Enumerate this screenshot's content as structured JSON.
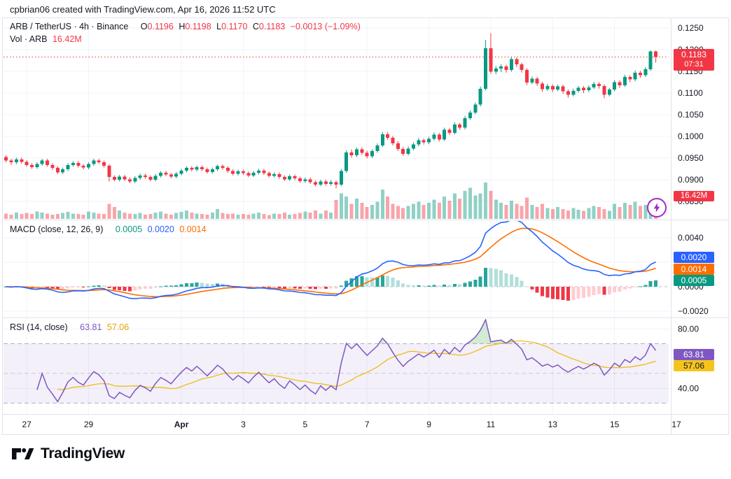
{
  "header": {
    "credit": "cpbrian06 created with TradingView.com, Apr 16, 2026 11:52 UTC"
  },
  "price_pane": {
    "legend": {
      "title": "ARB / TetherUS · 4h · Binance",
      "o_label": "O",
      "o": "0.1196",
      "h_label": "H",
      "h": "0.1198",
      "l_label": "L",
      "l": "0.1170",
      "c_label": "C",
      "c": "0.1183",
      "change": "−0.0013 (−1.09%)"
    },
    "volume_legend": {
      "label": "Vol · ARB",
      "value": "16.42M"
    },
    "axis_labels": [
      "0.1250",
      "0.1200",
      "0.1150",
      "0.1100",
      "0.1050",
      "0.1000",
      "0.0950",
      "0.0900",
      "0.0850"
    ],
    "current_price_badge": {
      "price": "0.1183",
      "countdown": "07:31"
    },
    "volume_badge": "16.42M"
  },
  "macd_pane": {
    "legend": {
      "title": "MACD (close, 12, 26, 9)",
      "hist": "0.0005",
      "macd": "0.0020",
      "signal": "0.0014"
    },
    "axis_labels": [
      "0.0040",
      "0.0000",
      "−0.0020"
    ],
    "badges": {
      "macd": "0.0020",
      "signal": "0.0014",
      "hist": "0.0005"
    }
  },
  "rsi_pane": {
    "legend": {
      "title": "RSI (14, close)",
      "rsi": "63.81",
      "ma": "57.06"
    },
    "axis_labels": [
      "80.00",
      "40.00"
    ],
    "badges": {
      "rsi": "63.81",
      "ma": "57.06"
    }
  },
  "logo": {
    "brand": "TradingView"
  },
  "colors": {
    "up": "#089981",
    "down": "#F23645",
    "vol_up": "rgba(8,153,129,0.45)",
    "vol_down": "rgba(242,54,69,0.45)",
    "macd_line": "#2962FF",
    "signal_line": "#FF6D00",
    "hist_pos": "#26A69A",
    "hist_pos_weak": "#B2DFDB",
    "hist_neg": "#F23645",
    "hist_neg_weak": "#FFCDD2",
    "rsi_line": "#7E57C2",
    "rsi_ma_line": "#EFBB16",
    "badge_red": "#F23645",
    "grid": "#f0f3fa",
    "border": "#e0e3eb",
    "text": "#131722"
  },
  "chart_data": [
    {
      "type": "candlestick",
      "title": "ARB / TetherUS · 4h · Binance",
      "last": {
        "open": 0.1196,
        "high": 0.1198,
        "low": 0.117,
        "close": 0.1183,
        "change": -0.0013,
        "change_pct": -1.09
      },
      "current_price": 0.1183,
      "countdown": "07:31",
      "ylim": [
        0.085,
        0.125
      ],
      "price_ticks": [
        0.125,
        0.12,
        0.115,
        0.11,
        0.105,
        0.1,
        0.095,
        0.09,
        0.085
      ],
      "time_ticks": [
        {
          "index": 4,
          "label": "27"
        },
        {
          "index": 16,
          "label": "29"
        },
        {
          "index": 34,
          "label": "Apr"
        },
        {
          "index": 46,
          "label": "3"
        },
        {
          "index": 58,
          "label": "5"
        },
        {
          "index": 70,
          "label": "7"
        },
        {
          "index": 82,
          "label": "9"
        },
        {
          "index": 94,
          "label": "11"
        },
        {
          "index": 106,
          "label": "13"
        },
        {
          "index": 118,
          "label": "15"
        },
        {
          "index": 130,
          "label": "17"
        }
      ],
      "volume_last_label": "16.42M",
      "columns": [
        "open",
        "high",
        "low",
        "close",
        "volume_millions"
      ],
      "candles": [
        [
          0.0952,
          0.0956,
          0.094,
          0.0944,
          10
        ],
        [
          0.0944,
          0.0948,
          0.0934,
          0.094,
          8
        ],
        [
          0.094,
          0.0951,
          0.0936,
          0.0947,
          12
        ],
        [
          0.0947,
          0.0951,
          0.0937,
          0.0941,
          9
        ],
        [
          0.0941,
          0.0945,
          0.093,
          0.0934,
          11
        ],
        [
          0.0934,
          0.0938,
          0.0925,
          0.0929,
          9
        ],
        [
          0.0929,
          0.094,
          0.0925,
          0.0936,
          14
        ],
        [
          0.0936,
          0.0948,
          0.0932,
          0.0944,
          12
        ],
        [
          0.0944,
          0.0948,
          0.093,
          0.0934,
          10
        ],
        [
          0.0934,
          0.0938,
          0.0923,
          0.0927,
          8
        ],
        [
          0.0927,
          0.0931,
          0.0913,
          0.0917,
          9
        ],
        [
          0.0917,
          0.0928,
          0.0913,
          0.0924,
          11
        ],
        [
          0.0924,
          0.0938,
          0.092,
          0.0934,
          13
        ],
        [
          0.0934,
          0.0943,
          0.093,
          0.0939,
          10
        ],
        [
          0.0939,
          0.0943,
          0.0928,
          0.0932,
          9
        ],
        [
          0.0932,
          0.0936,
          0.0924,
          0.0928,
          8
        ],
        [
          0.0928,
          0.094,
          0.0924,
          0.0936,
          14
        ],
        [
          0.0936,
          0.0948,
          0.0932,
          0.0944,
          12
        ],
        [
          0.0944,
          0.0948,
          0.0936,
          0.094,
          10
        ],
        [
          0.094,
          0.0944,
          0.0928,
          0.0932,
          9
        ],
        [
          0.0932,
          0.0936,
          0.0896,
          0.0906,
          28
        ],
        [
          0.0906,
          0.091,
          0.0896,
          0.09,
          22
        ],
        [
          0.09,
          0.0911,
          0.0896,
          0.0907,
          16
        ],
        [
          0.0907,
          0.0911,
          0.0897,
          0.0901,
          12
        ],
        [
          0.0901,
          0.0905,
          0.0892,
          0.0896,
          10
        ],
        [
          0.0896,
          0.0908,
          0.0892,
          0.0904,
          9
        ],
        [
          0.0904,
          0.0914,
          0.09,
          0.091,
          11
        ],
        [
          0.091,
          0.0914,
          0.0902,
          0.0906,
          8
        ],
        [
          0.0906,
          0.091,
          0.0896,
          0.09,
          9
        ],
        [
          0.09,
          0.0913,
          0.0896,
          0.0909,
          12
        ],
        [
          0.0909,
          0.092,
          0.0905,
          0.0916,
          14
        ],
        [
          0.0916,
          0.092,
          0.0908,
          0.0912,
          10
        ],
        [
          0.0912,
          0.0916,
          0.0903,
          0.0907,
          8
        ],
        [
          0.0907,
          0.0918,
          0.0903,
          0.0914,
          11
        ],
        [
          0.0914,
          0.0925,
          0.091,
          0.0921,
          13
        ],
        [
          0.0921,
          0.0931,
          0.0917,
          0.0927,
          16
        ],
        [
          0.0927,
          0.0931,
          0.0919,
          0.0923,
          12
        ],
        [
          0.0923,
          0.0933,
          0.0919,
          0.0929,
          10
        ],
        [
          0.0929,
          0.0933,
          0.092,
          0.0924,
          9
        ],
        [
          0.0924,
          0.0928,
          0.0914,
          0.0918,
          8
        ],
        [
          0.0918,
          0.0928,
          0.0914,
          0.0924,
          12
        ],
        [
          0.0924,
          0.0935,
          0.092,
          0.0931,
          18
        ],
        [
          0.0931,
          0.0935,
          0.0923,
          0.0927,
          11
        ],
        [
          0.0927,
          0.0931,
          0.0916,
          0.092,
          9
        ],
        [
          0.092,
          0.0924,
          0.091,
          0.0914,
          10
        ],
        [
          0.0914,
          0.0923,
          0.091,
          0.0919,
          8
        ],
        [
          0.0919,
          0.0923,
          0.0911,
          0.0915,
          9
        ],
        [
          0.0915,
          0.0919,
          0.0906,
          0.091,
          8
        ],
        [
          0.091,
          0.092,
          0.0906,
          0.0916,
          10
        ],
        [
          0.0916,
          0.0925,
          0.0912,
          0.0921,
          12
        ],
        [
          0.0921,
          0.0925,
          0.0911,
          0.0915,
          9
        ],
        [
          0.0915,
          0.0919,
          0.0905,
          0.0909,
          7
        ],
        [
          0.0909,
          0.0917,
          0.0905,
          0.0913,
          10
        ],
        [
          0.0913,
          0.0917,
          0.0902,
          0.0906,
          9
        ],
        [
          0.0906,
          0.091,
          0.0897,
          0.0901,
          12
        ],
        [
          0.0901,
          0.0912,
          0.0897,
          0.0908,
          8
        ],
        [
          0.0908,
          0.0912,
          0.0899,
          0.0903,
          9
        ],
        [
          0.0903,
          0.0907,
          0.0893,
          0.0897,
          11
        ],
        [
          0.0897,
          0.0905,
          0.0893,
          0.0901,
          14
        ],
        [
          0.0901,
          0.0905,
          0.089,
          0.0894,
          12
        ],
        [
          0.0894,
          0.0898,
          0.0885,
          0.0889,
          16
        ],
        [
          0.0889,
          0.09,
          0.0885,
          0.0896,
          10
        ],
        [
          0.0896,
          0.09,
          0.0886,
          0.089,
          16
        ],
        [
          0.089,
          0.0899,
          0.0886,
          0.0894,
          12
        ],
        [
          0.0894,
          0.0898,
          0.088,
          0.0889,
          35
        ],
        [
          0.0889,
          0.0925,
          0.0885,
          0.092,
          48
        ],
        [
          0.092,
          0.0968,
          0.0916,
          0.0963,
          42
        ],
        [
          0.0963,
          0.097,
          0.0951,
          0.0956,
          28
        ],
        [
          0.0956,
          0.0974,
          0.0952,
          0.097,
          38
        ],
        [
          0.097,
          0.0975,
          0.0957,
          0.0962,
          30
        ],
        [
          0.0962,
          0.0967,
          0.0949,
          0.0954,
          22
        ],
        [
          0.0954,
          0.097,
          0.095,
          0.0966,
          26
        ],
        [
          0.0966,
          0.0984,
          0.0962,
          0.0979,
          32
        ],
        [
          0.0979,
          0.101,
          0.0975,
          0.1005,
          55
        ],
        [
          0.1005,
          0.101,
          0.0992,
          0.0997,
          42
        ],
        [
          0.0997,
          0.1001,
          0.0979,
          0.0984,
          28
        ],
        [
          0.0984,
          0.0989,
          0.0966,
          0.0971,
          24
        ],
        [
          0.0971,
          0.0976,
          0.0955,
          0.096,
          20
        ],
        [
          0.096,
          0.0977,
          0.0956,
          0.0972,
          24
        ],
        [
          0.0972,
          0.0986,
          0.0968,
          0.0981,
          28
        ],
        [
          0.0981,
          0.0996,
          0.0977,
          0.0991,
          32
        ],
        [
          0.0991,
          0.0995,
          0.0981,
          0.0986,
          26
        ],
        [
          0.0986,
          0.0999,
          0.0982,
          0.0994,
          30
        ],
        [
          0.0994,
          0.1009,
          0.099,
          0.1004,
          36
        ],
        [
          0.1004,
          0.1008,
          0.0988,
          0.0993,
          30
        ],
        [
          0.0993,
          0.102,
          0.0989,
          0.1015,
          42
        ],
        [
          0.1015,
          0.1019,
          0.1003,
          0.1008,
          34
        ],
        [
          0.1008,
          0.1032,
          0.1004,
          0.1027,
          48
        ],
        [
          0.1027,
          0.1031,
          0.1015,
          0.102,
          38
        ],
        [
          0.102,
          0.1047,
          0.1016,
          0.1042,
          52
        ],
        [
          0.1042,
          0.106,
          0.1038,
          0.1055,
          58
        ],
        [
          0.1055,
          0.1078,
          0.1051,
          0.1073,
          44
        ],
        [
          0.1073,
          0.1115,
          0.1069,
          0.111,
          48
        ],
        [
          0.111,
          0.1222,
          0.1106,
          0.1203,
          68
        ],
        [
          0.1203,
          0.1238,
          0.1144,
          0.1149,
          52
        ],
        [
          0.1149,
          0.1162,
          0.1143,
          0.1156,
          36
        ],
        [
          0.1156,
          0.1166,
          0.1148,
          0.1161,
          30
        ],
        [
          0.1161,
          0.1165,
          0.1147,
          0.1153,
          26
        ],
        [
          0.1153,
          0.1183,
          0.1149,
          0.1178,
          34
        ],
        [
          0.1178,
          0.1182,
          0.116,
          0.1166,
          28
        ],
        [
          0.1166,
          0.117,
          0.1147,
          0.1153,
          24
        ],
        [
          0.1153,
          0.1157,
          0.1118,
          0.1124,
          40
        ],
        [
          0.1124,
          0.1138,
          0.112,
          0.1133,
          26
        ],
        [
          0.1133,
          0.1137,
          0.1116,
          0.1122,
          22
        ],
        [
          0.1122,
          0.1126,
          0.1103,
          0.1109,
          28
        ],
        [
          0.1109,
          0.1121,
          0.1105,
          0.1116,
          20
        ],
        [
          0.1116,
          0.112,
          0.1102,
          0.1108,
          18
        ],
        [
          0.1108,
          0.1119,
          0.1104,
          0.1115,
          22
        ],
        [
          0.1115,
          0.1119,
          0.1098,
          0.1104,
          18
        ],
        [
          0.1104,
          0.1108,
          0.1089,
          0.1096,
          16
        ],
        [
          0.1096,
          0.111,
          0.1092,
          0.1105,
          20
        ],
        [
          0.1105,
          0.1116,
          0.1101,
          0.1112,
          17
        ],
        [
          0.1112,
          0.1116,
          0.11,
          0.1106,
          15
        ],
        [
          0.1106,
          0.1118,
          0.1102,
          0.1113,
          20
        ],
        [
          0.1113,
          0.1126,
          0.1109,
          0.1121,
          24
        ],
        [
          0.1121,
          0.1125,
          0.111,
          0.1116,
          22
        ],
        [
          0.1116,
          0.112,
          0.1088,
          0.1096,
          18
        ],
        [
          0.1096,
          0.1112,
          0.1092,
          0.1108,
          15
        ],
        [
          0.1108,
          0.113,
          0.1104,
          0.1125,
          28
        ],
        [
          0.1125,
          0.1129,
          0.1112,
          0.1118,
          22
        ],
        [
          0.1118,
          0.1142,
          0.1114,
          0.1137,
          30
        ],
        [
          0.1137,
          0.1141,
          0.1125,
          0.1131,
          26
        ],
        [
          0.1131,
          0.1152,
          0.1127,
          0.1147,
          32
        ],
        [
          0.1147,
          0.1151,
          0.1135,
          0.1141,
          24
        ],
        [
          0.1141,
          0.116,
          0.1137,
          0.1155,
          26
        ],
        [
          0.1155,
          0.1198,
          0.1151,
          0.1196,
          34
        ],
        [
          0.1196,
          0.1198,
          0.117,
          0.1183,
          16.42
        ]
      ]
    },
    {
      "type": "macd",
      "params": "close, 12, 26, 9",
      "values_last": {
        "histogram": 0.0005,
        "macd": 0.002,
        "signal": 0.0014
      },
      "y_ticks": [
        0.004,
        0.002,
        0.0,
        -0.002
      ],
      "ylim": [
        -0.0028,
        0.0052
      ],
      "derived": "computed from candle closes with EMA(12), EMA(26), signal EMA(9)"
    },
    {
      "type": "rsi",
      "params": "14, close",
      "values_last": {
        "rsi": 63.81,
        "rsi_ma": 57.06
      },
      "bands": [
        70,
        50,
        30
      ],
      "y_ticks": [
        80,
        40
      ],
      "ylim": [
        22,
        88
      ],
      "derived": "computed from candle closes, Wilder RSI(14) + SMA(14) of RSI"
    }
  ]
}
